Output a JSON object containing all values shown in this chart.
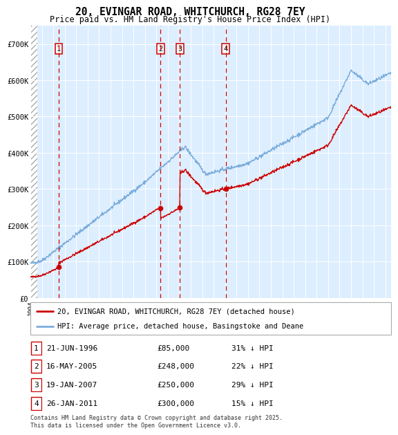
{
  "title": "20, EVINGAR ROAD, WHITCHURCH, RG28 7EY",
  "subtitle": "Price paid vs. HM Land Registry's House Price Index (HPI)",
  "hpi_label": "HPI: Average price, detached house, Basingstoke and Deane",
  "property_label": "20, EVINGAR ROAD, WHITCHURCH, RG28 7EY (detached house)",
  "hpi_color": "#7aacdb",
  "property_color": "#cc0000",
  "sale_color": "#cc0000",
  "vline_color": "#cc0000",
  "background_color": "#ddeeff",
  "ylim": [
    0,
    750000
  ],
  "yticks": [
    0,
    100000,
    200000,
    300000,
    400000,
    500000,
    600000,
    700000
  ],
  "ytick_labels": [
    "£0",
    "£100K",
    "£200K",
    "£300K",
    "£400K",
    "£500K",
    "£600K",
    "£700K"
  ],
  "sales": [
    {
      "num": 1,
      "date_str": "21-JUN-1996",
      "price": 85000,
      "pct": "31%",
      "date_x": 1996.47
    },
    {
      "num": 2,
      "date_str": "16-MAY-2005",
      "price": 248000,
      "pct": "22%",
      "date_x": 2005.37
    },
    {
      "num": 3,
      "date_str": "19-JAN-2007",
      "price": 250000,
      "pct": "29%",
      "date_x": 2007.05
    },
    {
      "num": 4,
      "date_str": "26-JAN-2011",
      "price": 300000,
      "pct": "15%",
      "date_x": 2011.07
    }
  ],
  "footer": "Contains HM Land Registry data © Crown copyright and database right 2025.\nThis data is licensed under the Open Government Licence v3.0.",
  "xmin": 1994.0,
  "xmax": 2025.5
}
